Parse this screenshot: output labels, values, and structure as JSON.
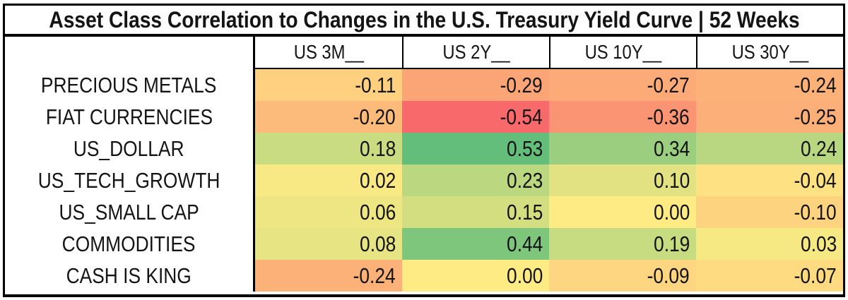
{
  "title": "Asset Class Correlation to Changes in the U.S. Treasury Yield Curve | 52 Weeks",
  "chart_data": {
    "type": "heatmap",
    "title": "Asset Class Correlation to Changes in the U.S. Treasury Yield Curve | 52 Weeks",
    "period": "52 Weeks",
    "columns": [
      "US 3M__",
      "US 2Y__",
      "US 10Y__",
      "US 30Y__"
    ],
    "rows": [
      "PRECIOUS METALS",
      "FIAT CURRENCIES",
      "US_DOLLAR",
      "US_TECH_GROWTH",
      "US_SMALL CAP",
      "COMMODITIES",
      "CASH IS KING"
    ],
    "values": [
      [
        -0.11,
        -0.29,
        -0.27,
        -0.24
      ],
      [
        -0.2,
        -0.54,
        -0.36,
        -0.25
      ],
      [
        0.18,
        0.53,
        0.34,
        0.24
      ],
      [
        0.02,
        0.23,
        0.1,
        -0.04
      ],
      [
        0.06,
        0.15,
        0.0,
        -0.1
      ],
      [
        0.08,
        0.44,
        0.19,
        0.03
      ],
      [
        -0.24,
        0.0,
        -0.09,
        -0.07
      ]
    ],
    "value_format": "two-decimals",
    "color_scale": {
      "type": "diverging",
      "min_value": -0.54,
      "mid_value": 0,
      "max_value": 0.53,
      "min_color": "#F8696B",
      "mid_color": "#FFEB84",
      "max_color": "#63BE7B"
    },
    "cell_colors": [
      [
        "#FED07F",
        "#FBA577",
        "#FCAA78",
        "#FCB179"
      ],
      [
        "#FCBB7B",
        "#F8696B",
        "#FA9473",
        "#FCAF78"
      ],
      [
        "#CADC81",
        "#63BE7B",
        "#9BCE7E",
        "#B8D780"
      ],
      [
        "#F9E984",
        "#BBD780",
        "#E2E282",
        "#FEE182"
      ],
      [
        "#EDE683",
        "#D3DE81",
        "#FFEB84",
        "#FED37F"
      ],
      [
        "#E7E483",
        "#7DC67C",
        "#C7DB81",
        "#F6E883"
      ],
      [
        "#FCB179",
        "#FFEB84",
        "#FED580",
        "#FEDA81"
      ]
    ],
    "layout": {
      "legend": "none",
      "grid": "off",
      "row_label_column": "left",
      "value_alignment": "right"
    }
  },
  "style_colors": {
    "border": "#000000",
    "background": "#FFFFFF",
    "header_background": "#FFFFFF",
    "label_background": "#FFFFFF",
    "text": "#141414"
  }
}
